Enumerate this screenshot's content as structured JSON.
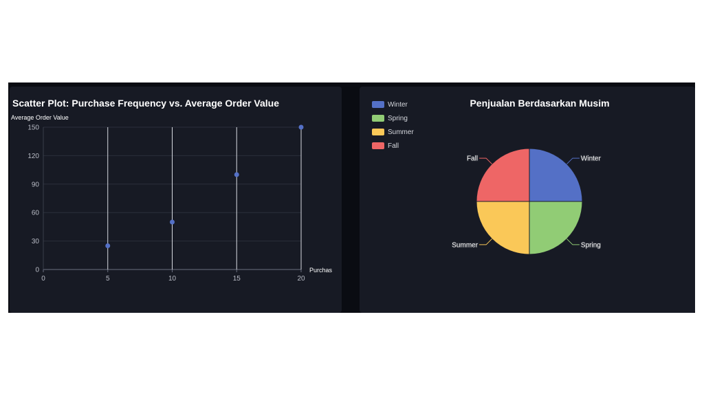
{
  "chart_data": [
    {
      "type": "scatter",
      "title": "Scatter Plot: Purchase Frequency vs. Average Order Value",
      "xlabel": "Purchas",
      "ylabel": "Average Order Value",
      "xlim": [
        0,
        20
      ],
      "ylim": [
        0,
        150
      ],
      "x_ticks": [
        "0",
        "5",
        "10",
        "15",
        "20"
      ],
      "y_ticks": [
        "0",
        "30",
        "60",
        "90",
        "120",
        "150"
      ],
      "grid": true,
      "marker_color": "#5470c6",
      "points": [
        {
          "x": 5,
          "y": 25
        },
        {
          "x": 10,
          "y": 50
        },
        {
          "x": 15,
          "y": 100
        },
        {
          "x": 20,
          "y": 150
        }
      ]
    },
    {
      "type": "pie",
      "title": "Penjualan Berdasarkan Musim",
      "legend_position": "top-left",
      "slices": [
        {
          "label": "Winter",
          "value": 25,
          "color": "#5470c6"
        },
        {
          "label": "Spring",
          "value": 25,
          "color": "#91cc75"
        },
        {
          "label": "Summer",
          "value": 25,
          "color": "#fac858"
        },
        {
          "label": "Fall",
          "value": 25,
          "color": "#ee6666"
        }
      ]
    }
  ]
}
